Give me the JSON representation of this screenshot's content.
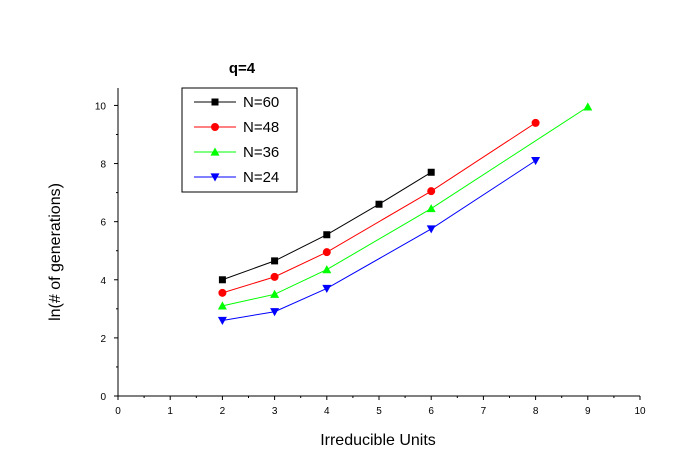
{
  "chart_data": {
    "type": "line",
    "title": "q=4",
    "xlabel": "Irreducible Units",
    "ylabel": "ln(# of generations)",
    "xlim": [
      0,
      10
    ],
    "ylim": [
      0,
      10.6
    ],
    "xticks": [
      "0",
      "1",
      "2",
      "3",
      "4",
      "5",
      "6",
      "7",
      "8",
      "9",
      "10"
    ],
    "yticks": [
      "0",
      "2",
      "4",
      "6",
      "8",
      "10"
    ],
    "grid": false,
    "legend_position": "top-left",
    "series": [
      {
        "name": "N=60",
        "color": "#000000",
        "marker": "square",
        "x": [
          2,
          3,
          4,
          5,
          6
        ],
        "y": [
          4.0,
          4.65,
          5.55,
          6.6,
          7.7
        ]
      },
      {
        "name": "N=48",
        "color": "#ff0000",
        "marker": "circle",
        "x": [
          2,
          3,
          4,
          6,
          8
        ],
        "y": [
          3.55,
          4.1,
          4.95,
          7.05,
          9.4
        ]
      },
      {
        "name": "N=36",
        "color": "#00ff00",
        "marker": "triangle-up",
        "x": [
          2,
          3,
          4,
          6,
          9
        ],
        "y": [
          3.1,
          3.5,
          4.35,
          6.45,
          9.95
        ]
      },
      {
        "name": "N=24",
        "color": "#0000ff",
        "marker": "triangle-down",
        "x": [
          2,
          3,
          4,
          6,
          8
        ],
        "y": [
          2.6,
          2.9,
          3.7,
          5.75,
          8.1
        ]
      }
    ]
  }
}
